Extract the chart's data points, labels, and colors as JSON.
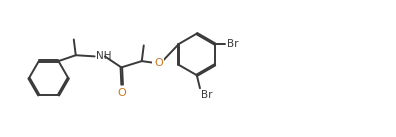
{
  "bg_color": "#ffffff",
  "bond_color": "#3a3a3a",
  "o_color": "#c87820",
  "lw": 1.4,
  "dbo": 0.018,
  "xlim": [
    0,
    10
  ],
  "ylim": [
    0,
    3.45
  ],
  "figw": 3.96,
  "figh": 1.37,
  "dpi": 100,
  "font_size": 7.5
}
